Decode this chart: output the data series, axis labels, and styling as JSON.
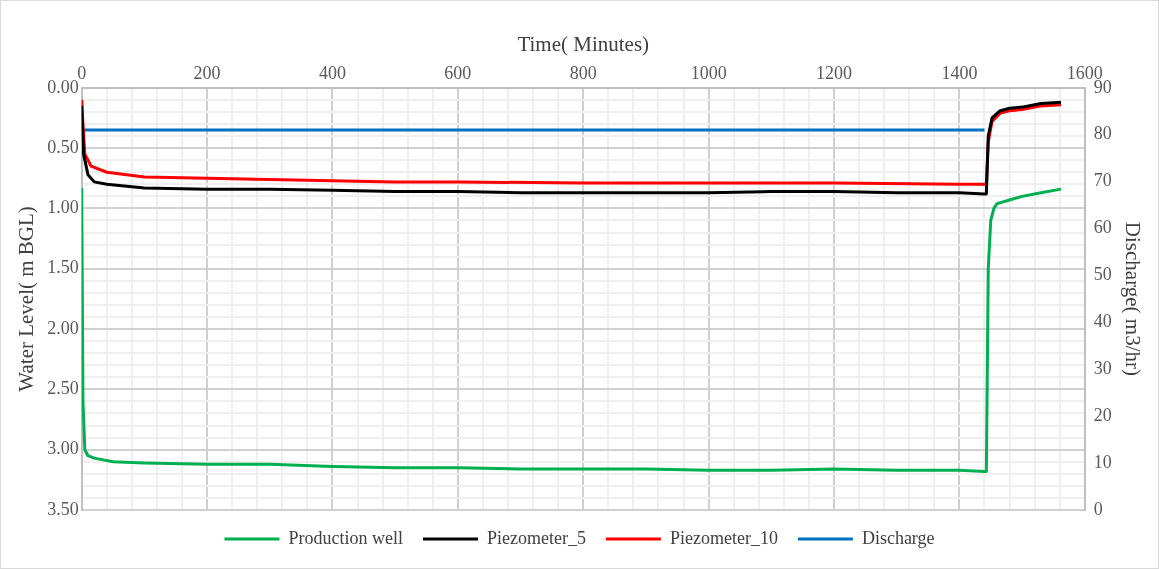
{
  "chart_data": {
    "type": "line",
    "xlabel": "Time( Minutes)",
    "ylabel": "Water Level( m BGL)",
    "y2label": "Discharge( m3/hr)",
    "xlim": [
      0,
      1600
    ],
    "xticks": [
      0,
      {
        "value": 40,
        "label": null
      },
      {
        "value": 80,
        "label": null
      },
      {
        "value": 120,
        "label": null
      },
      {
        "value": 160,
        "label": null
      },
      200,
      {
        "value": 240,
        "label": null
      },
      {
        "value": 280,
        "label": null
      },
      {
        "value": 320,
        "label": null
      },
      {
        "value": 360,
        "label": null
      },
      400,
      {
        "value": 440,
        "label": null
      },
      {
        "value": 480,
        "label": null
      },
      {
        "value": 520,
        "label": null
      },
      {
        "value": 560,
        "label": null
      },
      600,
      {
        "value": 640,
        "label": null
      },
      {
        "value": 680,
        "label": null
      },
      {
        "value": 720,
        "label": null
      },
      {
        "value": 760,
        "label": null
      },
      800,
      {
        "value": 840,
        "label": null
      },
      {
        "value": 880,
        "label": null
      },
      {
        "value": 920,
        "label": null
      },
      {
        "value": 960,
        "label": null
      },
      1000,
      {
        "value": 1040,
        "label": null
      },
      {
        "value": 1080,
        "label": null
      },
      {
        "value": 1120,
        "label": null
      },
      {
        "value": 1160,
        "label": null
      },
      1200,
      {
        "value": 1240,
        "label": null
      },
      {
        "value": 1280,
        "label": null
      },
      {
        "value": 1320,
        "label": null
      },
      {
        "value": 1360,
        "label": null
      },
      1400,
      {
        "value": 1440,
        "label": null
      },
      {
        "value": 1480,
        "label": null
      },
      {
        "value": 1520,
        "label": null
      },
      {
        "value": 1560,
        "label": null
      },
      1600
    ],
    "ylim": [
      3.5,
      0
    ],
    "yticks": [
      {
        "value": 0,
        "label": "0.00"
      },
      {
        "value": 0.1,
        "label": null
      },
      {
        "value": 0.2,
        "label": null
      },
      {
        "value": 0.3,
        "label": null
      },
      {
        "value": 0.4,
        "label": null
      },
      {
        "value": 0.5,
        "label": "0.50"
      },
      {
        "value": 0.6,
        "label": null
      },
      {
        "value": 0.7,
        "label": null
      },
      {
        "value": 0.8,
        "label": null
      },
      {
        "value": 0.9,
        "label": null
      },
      {
        "value": 1,
        "label": "1.00"
      },
      {
        "value": 1.1,
        "label": null
      },
      {
        "value": 1.2,
        "label": null
      },
      {
        "value": 1.3,
        "label": null
      },
      {
        "value": 1.4,
        "label": null
      },
      {
        "value": 1.5,
        "label": "1.50"
      },
      {
        "value": 1.6,
        "label": null
      },
      {
        "value": 1.7,
        "label": null
      },
      {
        "value": 1.8,
        "label": null
      },
      {
        "value": 1.9,
        "label": null
      },
      {
        "value": 2,
        "label": "2.00"
      },
      {
        "value": 2.1,
        "label": null
      },
      {
        "value": 2.2,
        "label": null
      },
      {
        "value": 2.3,
        "label": null
      },
      {
        "value": 2.4,
        "label": null
      },
      {
        "value": 2.5,
        "label": "2.50"
      },
      {
        "value": 2.6,
        "label": null
      },
      {
        "value": 2.7,
        "label": null
      },
      {
        "value": 2.8,
        "label": null
      },
      {
        "value": 2.9,
        "label": null
      },
      {
        "value": 3,
        "label": "3.00"
      },
      {
        "value": 3.1,
        "label": null
      },
      {
        "value": 3.2,
        "label": null
      },
      {
        "value": 3.3,
        "label": null
      },
      {
        "value": 3.4,
        "label": null
      },
      {
        "value": 3.5,
        "label": "3.50"
      }
    ],
    "y2lim": [
      0,
      90
    ],
    "y2ticks": [
      0,
      10,
      20,
      30,
      40,
      50,
      60,
      70,
      80,
      90
    ],
    "grid": true,
    "legend": "bottom",
    "marker": "none",
    "line_style": "solid",
    "series": [
      {
        "name": "Production well",
        "color": "#00b050",
        "x": [
          0,
          2,
          5,
          10,
          20,
          50,
          100,
          200,
          300,
          400,
          500,
          600,
          700,
          800,
          900,
          1000,
          1100,
          1200,
          1300,
          1400,
          1440,
          1443,
          1446,
          1450,
          1455,
          1460,
          1480,
          1500,
          1530,
          1562
        ],
        "values": [
          0.83,
          2.6,
          3.0,
          3.05,
          3.07,
          3.1,
          3.11,
          3.12,
          3.12,
          3.14,
          3.15,
          3.15,
          3.16,
          3.16,
          3.16,
          3.17,
          3.17,
          3.16,
          3.17,
          3.17,
          3.18,
          3.18,
          1.5,
          1.1,
          1.0,
          0.96,
          0.93,
          0.9,
          0.87,
          0.84
        ]
      },
      {
        "name": "Piezometer_5",
        "color": "#000000",
        "x": [
          0,
          3,
          10,
          20,
          40,
          100,
          200,
          300,
          400,
          500,
          600,
          700,
          800,
          900,
          1000,
          1100,
          1200,
          1300,
          1400,
          1440,
          1443,
          1446,
          1452,
          1465,
          1480,
          1500,
          1530,
          1562
        ],
        "values": [
          0.15,
          0.55,
          0.72,
          0.78,
          0.8,
          0.83,
          0.84,
          0.84,
          0.85,
          0.86,
          0.86,
          0.87,
          0.87,
          0.87,
          0.87,
          0.86,
          0.86,
          0.87,
          0.87,
          0.88,
          0.88,
          0.4,
          0.25,
          0.19,
          0.17,
          0.16,
          0.13,
          0.12
        ]
      },
      {
        "name": "Piezometer_10",
        "color": "#ff0000",
        "x": [
          0,
          2,
          5,
          15,
          40,
          100,
          200,
          300,
          400,
          500,
          600,
          800,
          1000,
          1200,
          1400,
          1440,
          1443,
          1446,
          1452,
          1465,
          1480,
          1500,
          1530,
          1562
        ],
        "values": [
          0.1,
          0.3,
          0.55,
          0.65,
          0.7,
          0.74,
          0.75,
          0.76,
          0.77,
          0.78,
          0.78,
          0.79,
          0.79,
          0.79,
          0.8,
          0.8,
          0.8,
          0.45,
          0.28,
          0.21,
          0.19,
          0.18,
          0.15,
          0.14
        ]
      },
      {
        "name": "Discharge",
        "color": "#0070c0",
        "axis": "y2",
        "x": [
          0,
          1440
        ],
        "values": [
          81,
          81
        ]
      }
    ]
  }
}
